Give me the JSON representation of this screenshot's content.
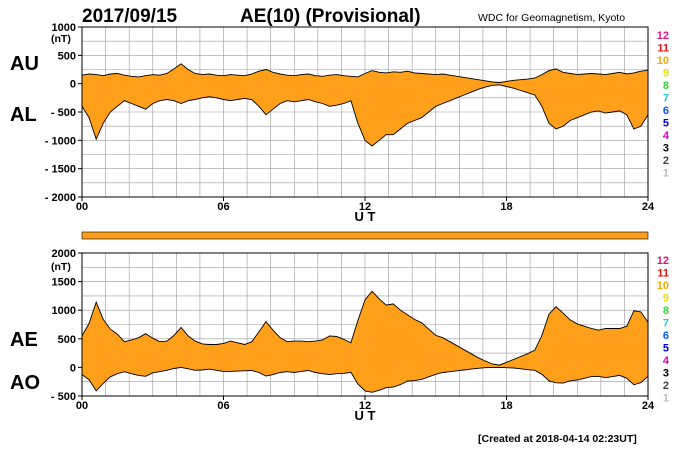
{
  "header": {
    "date": "2017/09/15",
    "title": "AE(10) (Provisional)",
    "source": "WDC for Geomagnetism, Kyoto"
  },
  "footer": {
    "created": "[Created at 2018-04-14 02:23UT]"
  },
  "colors": {
    "fill": "#ff9f1a",
    "line": "#000000",
    "grid": "#9a9a9a",
    "station_counts": [
      "#e0137a",
      "#ee1111",
      "#f5a800",
      "#e8e000",
      "#33dd33",
      "#22cccc",
      "#0055ff",
      "#0000cc",
      "#cc00cc",
      "#000000",
      "#444444",
      "#bbbbbb"
    ]
  },
  "station_counts": [
    "12",
    "11",
    "10",
    "9",
    "8",
    "7",
    "6",
    "5",
    "4",
    "3",
    "2",
    "1"
  ],
  "chart_data": [
    {
      "type": "area",
      "panel": "top",
      "xlabel": "U T",
      "ylabel": "(nT)",
      "xlim": [
        0,
        24
      ],
      "ylim": [
        -2000,
        1000
      ],
      "xticks": [
        "00",
        "06",
        "12",
        "18",
        "24"
      ],
      "xtick_values": [
        0,
        6,
        12,
        18,
        24
      ],
      "yticks": [
        "1000",
        "500",
        "0",
        "- 500",
        "- 1000",
        "- 1500",
        "- 2000"
      ],
      "ytick_values": [
        1000,
        500,
        0,
        -500,
        -1000,
        -1500,
        -2000
      ],
      "grid": true,
      "x": [
        0,
        0.3,
        0.6,
        0.9,
        1.2,
        1.5,
        1.8,
        2.1,
        2.4,
        2.7,
        3.0,
        3.3,
        3.6,
        3.9,
        4.2,
        4.5,
        4.8,
        5.1,
        5.4,
        5.7,
        6.0,
        6.3,
        6.6,
        6.9,
        7.2,
        7.5,
        7.8,
        8.1,
        8.4,
        8.7,
        9.0,
        9.3,
        9.6,
        9.9,
        10.2,
        10.5,
        10.8,
        11.1,
        11.4,
        11.7,
        12.0,
        12.3,
        12.6,
        12.9,
        13.2,
        13.5,
        13.8,
        14.1,
        14.4,
        14.7,
        15.0,
        15.3,
        15.6,
        15.9,
        16.2,
        16.5,
        16.8,
        17.1,
        17.4,
        17.7,
        18.0,
        18.3,
        18.6,
        18.9,
        19.2,
        19.5,
        19.8,
        20.1,
        20.4,
        20.7,
        21.0,
        21.3,
        21.6,
        21.9,
        22.2,
        22.5,
        22.8,
        23.1,
        23.4,
        23.7,
        24.0
      ],
      "series": [
        {
          "name": "AU",
          "values": [
            150,
            170,
            160,
            140,
            170,
            180,
            150,
            130,
            120,
            140,
            160,
            150,
            180,
            260,
            350,
            250,
            180,
            160,
            170,
            150,
            140,
            160,
            150,
            140,
            170,
            220,
            250,
            200,
            170,
            150,
            140,
            160,
            170,
            140,
            130,
            150,
            160,
            140,
            130,
            120,
            180,
            230,
            200,
            190,
            210,
            200,
            220,
            190,
            180,
            170,
            160,
            170,
            150,
            130,
            110,
            90,
            70,
            50,
            30,
            20,
            40,
            60,
            70,
            80,
            100,
            160,
            230,
            260,
            200,
            180,
            160,
            170,
            180,
            170,
            160,
            180,
            200,
            170,
            190,
            220,
            240
          ]
        },
        {
          "name": "AL",
          "values": [
            -400,
            -600,
            -980,
            -700,
            -500,
            -400,
            -300,
            -350,
            -400,
            -450,
            -350,
            -300,
            -280,
            -300,
            -350,
            -300,
            -280,
            -250,
            -230,
            -250,
            -280,
            -300,
            -280,
            -260,
            -280,
            -400,
            -550,
            -450,
            -350,
            -300,
            -320,
            -300,
            -280,
            -320,
            -350,
            -400,
            -380,
            -350,
            -300,
            -700,
            -1000,
            -1100,
            -1000,
            -900,
            -900,
            -800,
            -700,
            -650,
            -600,
            -500,
            -400,
            -350,
            -300,
            -250,
            -200,
            -150,
            -100,
            -60,
            -30,
            -20,
            -50,
            -80,
            -120,
            -160,
            -200,
            -400,
            -700,
            -800,
            -750,
            -650,
            -600,
            -550,
            -500,
            -480,
            -520,
            -500,
            -480,
            -550,
            -800,
            -750,
            -550
          ]
        }
      ]
    },
    {
      "type": "area",
      "panel": "bottom",
      "xlabel": "U T",
      "ylabel": "(nT)",
      "xlim": [
        0,
        24
      ],
      "ylim": [
        -500,
        2000
      ],
      "xticks": [
        "00",
        "06",
        "12",
        "18",
        "24"
      ],
      "xtick_values": [
        0,
        6,
        12,
        18,
        24
      ],
      "yticks": [
        "2000",
        "1500",
        "1000",
        "500",
        "0",
        "- 500"
      ],
      "ytick_values": [
        2000,
        1500,
        1000,
        500,
        0,
        -500
      ],
      "grid": true,
      "x": [
        0,
        0.3,
        0.6,
        0.9,
        1.2,
        1.5,
        1.8,
        2.1,
        2.4,
        2.7,
        3.0,
        3.3,
        3.6,
        3.9,
        4.2,
        4.5,
        4.8,
        5.1,
        5.4,
        5.7,
        6.0,
        6.3,
        6.6,
        6.9,
        7.2,
        7.5,
        7.8,
        8.1,
        8.4,
        8.7,
        9.0,
        9.3,
        9.6,
        9.9,
        10.2,
        10.5,
        10.8,
        11.1,
        11.4,
        11.7,
        12.0,
        12.3,
        12.6,
        12.9,
        13.2,
        13.5,
        13.8,
        14.1,
        14.4,
        14.7,
        15.0,
        15.3,
        15.6,
        15.9,
        16.2,
        16.5,
        16.8,
        17.1,
        17.4,
        17.7,
        18.0,
        18.3,
        18.6,
        18.9,
        19.2,
        19.5,
        19.8,
        20.1,
        20.4,
        20.7,
        21.0,
        21.3,
        21.6,
        21.9,
        22.2,
        22.5,
        22.8,
        23.1,
        23.4,
        23.7,
        24.0
      ],
      "series": [
        {
          "name": "AE",
          "values": [
            550,
            770,
            1140,
            840,
            670,
            580,
            450,
            480,
            520,
            590,
            510,
            450,
            460,
            560,
            700,
            550,
            460,
            410,
            400,
            400,
            420,
            460,
            430,
            400,
            450,
            620,
            800,
            650,
            520,
            450,
            460,
            460,
            450,
            460,
            480,
            550,
            540,
            490,
            430,
            820,
            1180,
            1330,
            1200,
            1090,
            1110,
            1000,
            920,
            840,
            780,
            670,
            560,
            520,
            450,
            380,
            310,
            240,
            170,
            110,
            60,
            40,
            90,
            140,
            190,
            240,
            300,
            560,
            930,
            1060,
            950,
            830,
            760,
            720,
            680,
            650,
            680,
            680,
            680,
            720,
            990,
            970,
            790
          ]
        },
        {
          "name": "AO",
          "values": [
            -125,
            -215,
            -410,
            -280,
            -165,
            -110,
            -75,
            -110,
            -140,
            -155,
            -95,
            -75,
            -50,
            -20,
            0,
            -25,
            -50,
            -45,
            -30,
            -50,
            -70,
            -70,
            -65,
            -60,
            -55,
            -90,
            -150,
            -125,
            -90,
            -75,
            -90,
            -70,
            -55,
            -90,
            -110,
            -125,
            -110,
            -105,
            -85,
            -290,
            -410,
            -435,
            -400,
            -355,
            -345,
            -300,
            -240,
            -230,
            -210,
            -165,
            -120,
            -90,
            -75,
            -60,
            -45,
            -30,
            -15,
            -5,
            0,
            0,
            -5,
            -10,
            -25,
            -40,
            -50,
            -120,
            -235,
            -270,
            -275,
            -235,
            -220,
            -190,
            -160,
            -155,
            -180,
            -160,
            -140,
            -190,
            -305,
            -265,
            -155
          ]
        }
      ]
    }
  ]
}
